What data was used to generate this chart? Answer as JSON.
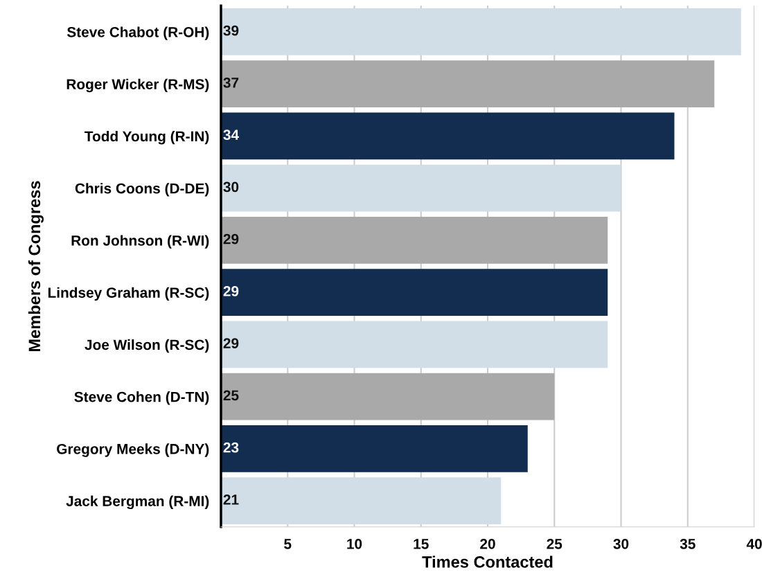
{
  "chart_data": {
    "type": "bar",
    "orientation": "horizontal",
    "xlabel": "Times Contacted",
    "ylabel": "Members of Congress",
    "categories": [
      "Steve Chabot (R-OH)",
      "Roger Wicker (R-MS)",
      "Todd Young (R-IN)",
      "Chris Coons (D-DE)",
      "Ron Johnson (R-WI)",
      "Lindsey Graham (R-SC)",
      "Joe Wilson (R-SC)",
      "Steve Cohen (D-TN)",
      "Gregory Meeks (D-NY)",
      "Jack Bergman (R-MI)"
    ],
    "values": [
      39,
      37,
      34,
      30,
      29,
      29,
      29,
      25,
      23,
      21
    ],
    "colors": [
      "#d1dee8",
      "#a9a9a9",
      "#122d4f",
      "#d1dee8",
      "#a9a9a9",
      "#122d4f",
      "#d1dee8",
      "#a9a9a9",
      "#122d4f",
      "#d1dee8"
    ],
    "xlim": [
      0,
      40
    ],
    "xticks": [
      5,
      10,
      15,
      20,
      25,
      30,
      35,
      40
    ],
    "grid": "x",
    "data_labels": true
  }
}
